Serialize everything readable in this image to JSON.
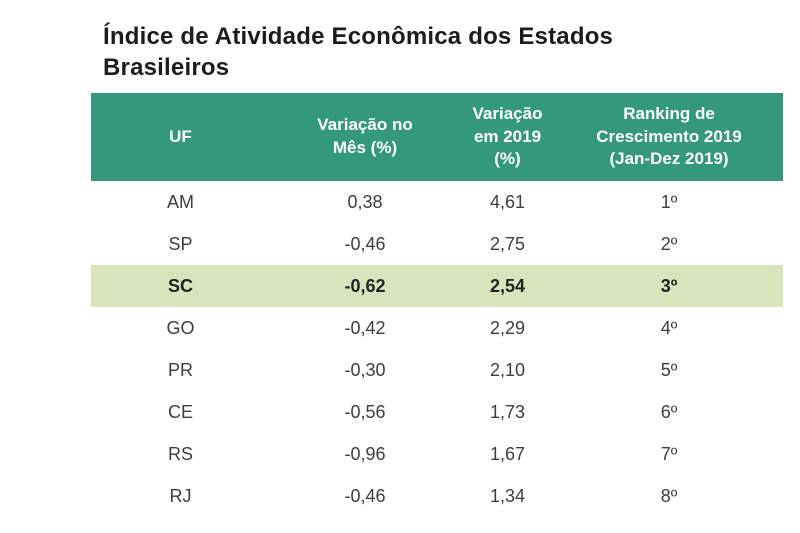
{
  "title": "Índice de Atividade Econômica dos Estados Brasileiros",
  "colors": {
    "page_bg": "#ffffff",
    "title_text": "#1c1c1c",
    "header_bg": "#34997c",
    "header_text": "#ffffff",
    "highlight_bg": "#d7e4bc",
    "row_text": "#3d3d3d"
  },
  "table": {
    "columns": [
      "UF",
      "Variação no Mês (%)",
      "Variação em 2019 (%)",
      "Ranking de Crescimento 2019 (Jan-Dez 2019)"
    ],
    "rows": [
      {
        "uf": "AM",
        "var_mes": "0,38",
        "var_2019": "4,61",
        "ranking": "1º",
        "highlight": false
      },
      {
        "uf": "SP",
        "var_mes": "-0,46",
        "var_2019": "2,75",
        "ranking": "2º",
        "highlight": false
      },
      {
        "uf": "SC",
        "var_mes": "-0,62",
        "var_2019": "2,54",
        "ranking": "3º",
        "highlight": true
      },
      {
        "uf": "GO",
        "var_mes": "-0,42",
        "var_2019": "2,29",
        "ranking": "4º",
        "highlight": false
      },
      {
        "uf": "PR",
        "var_mes": "-0,30",
        "var_2019": "2,10",
        "ranking": "5º",
        "highlight": false
      },
      {
        "uf": "CE",
        "var_mes": "-0,56",
        "var_2019": "1,73",
        "ranking": "6º",
        "highlight": false
      },
      {
        "uf": "RS",
        "var_mes": "-0,96",
        "var_2019": "1,67",
        "ranking": "7º",
        "highlight": false
      },
      {
        "uf": "RJ",
        "var_mes": "-0,46",
        "var_2019": "1,34",
        "ranking": "8º",
        "highlight": false
      }
    ]
  },
  "chart_data": {
    "type": "table",
    "title": "Índice de Atividade Econômica dos Estados Brasileiros",
    "columns": [
      "UF",
      "Variação no Mês (%)",
      "Variação em 2019 (%)",
      "Ranking de Crescimento 2019 (Jan-Dez 2019)"
    ],
    "rows": [
      [
        "AM",
        "0,38",
        "4,61",
        "1º"
      ],
      [
        "SP",
        "-0,46",
        "2,75",
        "2º"
      ],
      [
        "SC",
        "-0,62",
        "2,54",
        "3º"
      ],
      [
        "GO",
        "-0,42",
        "2,29",
        "4º"
      ],
      [
        "PR",
        "-0,30",
        "2,10",
        "5º"
      ],
      [
        "CE",
        "-0,56",
        "1,73",
        "6º"
      ],
      [
        "RS",
        "-0,96",
        "1,67",
        "7º"
      ],
      [
        "RJ",
        "-0,46",
        "1,34",
        "8º"
      ]
    ],
    "rows_numeric": [
      {
        "uf": "AM",
        "var_mes": 0.38,
        "var_2019": 4.61,
        "rank": 1
      },
      {
        "uf": "SP",
        "var_mes": -0.46,
        "var_2019": 2.75,
        "rank": 2
      },
      {
        "uf": "SC",
        "var_mes": -0.62,
        "var_2019": 2.54,
        "rank": 3
      },
      {
        "uf": "GO",
        "var_mes": -0.42,
        "var_2019": 2.29,
        "rank": 4
      },
      {
        "uf": "PR",
        "var_mes": -0.3,
        "var_2019": 2.1,
        "rank": 5
      },
      {
        "uf": "CE",
        "var_mes": -0.56,
        "var_2019": 1.73,
        "rank": 6
      },
      {
        "uf": "RS",
        "var_mes": -0.96,
        "var_2019": 1.67,
        "rank": 7
      },
      {
        "uf": "RJ",
        "var_mes": -0.46,
        "var_2019": 1.34,
        "rank": 8
      }
    ],
    "highlighted_row": "SC",
    "legend_position": "none",
    "grid": false
  }
}
